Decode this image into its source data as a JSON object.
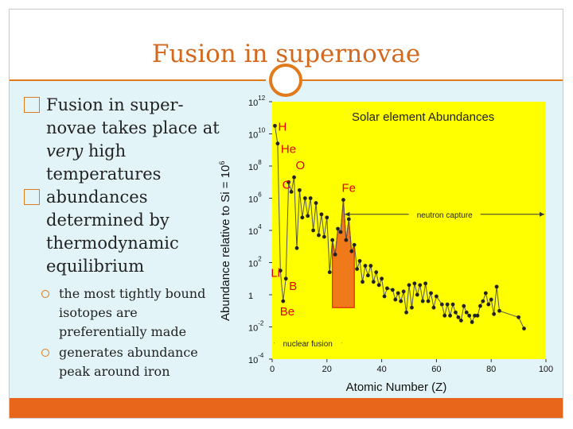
{
  "slide": {
    "title": "Fusion in supernovae",
    "bullets": [
      {
        "pre": "Fusion in super-novae takes place at ",
        "em": "very",
        "post": " high temperatures"
      },
      {
        "pre": "abundances determined by thermodynamic equilibrium",
        "em": "",
        "post": ""
      }
    ],
    "sub_bullets": [
      "the most tightly bound isotopes are preferentially made",
      "generates abundance peak around iron"
    ]
  },
  "colors": {
    "accent": "#e07a1a",
    "plot_bg": "#ffff00",
    "line": "#555555",
    "point": "#222222",
    "fill": "#f07a1a",
    "label_red": "#e10000"
  },
  "chart_data": {
    "type": "line",
    "title": "Solar element Abundances",
    "xlabel": "Atomic Number (Z)",
    "ylabel": "Abundance relative to Si = 10",
    "ylabel_sup": "6",
    "xlim": [
      0,
      100
    ],
    "ylim": [
      -4,
      12
    ],
    "xticks": [
      "0",
      "20",
      "40",
      "60",
      "80",
      "100"
    ],
    "yticks": [
      {
        "value": 12,
        "base": "10",
        "exp": "12"
      },
      {
        "value": 10,
        "base": "10",
        "exp": "10"
      },
      {
        "value": 8,
        "base": "10",
        "exp": "8"
      },
      {
        "value": 6,
        "base": "10",
        "exp": "6"
      },
      {
        "value": 4,
        "base": "10",
        "exp": "4"
      },
      {
        "value": 2,
        "base": "10",
        "exp": "2"
      },
      {
        "value": 0,
        "base": "1",
        "exp": ""
      },
      {
        "value": -2,
        "base": "10",
        "exp": "-2"
      },
      {
        "value": -4,
        "base": "10",
        "exp": "-4"
      }
    ],
    "x": [
      1,
      2,
      3,
      4,
      5,
      6,
      7,
      8,
      9,
      10,
      11,
      12,
      13,
      14,
      15,
      16,
      17,
      18,
      19,
      20,
      21,
      22,
      23,
      24,
      25,
      26,
      27,
      28,
      29,
      30,
      31,
      32,
      33,
      34,
      35,
      36,
      37,
      38,
      39,
      40,
      41,
      42,
      44,
      45,
      46,
      47,
      48,
      49,
      50,
      51,
      52,
      53,
      54,
      55,
      56,
      57,
      58,
      59,
      60,
      62,
      63,
      64,
      65,
      66,
      67,
      68,
      69,
      70,
      71,
      72,
      73,
      74,
      75,
      76,
      77,
      78,
      79,
      80,
      81,
      82,
      83,
      90,
      92
    ],
    "y": [
      10.5,
      9.4,
      1.5,
      -0.4,
      1.0,
      7.0,
      6.4,
      7.3,
      2.9,
      6.5,
      4.8,
      6.0,
      4.9,
      6.0,
      4.0,
      5.7,
      3.7,
      5.0,
      3.6,
      4.8,
      1.4,
      3.4,
      2.5,
      4.1,
      3.9,
      5.9,
      3.4,
      4.7,
      2.7,
      3.1,
      1.6,
      2.1,
      0.8,
      1.8,
      1.2,
      1.8,
      0.8,
      1.4,
      0.6,
      1.0,
      -0.1,
      0.4,
      0.3,
      -0.3,
      0.1,
      -0.4,
      0.2,
      -1.1,
      0.6,
      -0.8,
      0.7,
      0.0,
      0.6,
      -0.4,
      0.7,
      -0.4,
      0.1,
      -0.8,
      -0.1,
      -0.6,
      -1.3,
      -0.6,
      -1.3,
      -0.6,
      -1.1,
      -1.4,
      -1.6,
      -0.7,
      -1.1,
      -1.3,
      -1.7,
      -1.3,
      -1.3,
      -0.7,
      -0.4,
      0.1,
      -0.6,
      -0.3,
      -1.2,
      0.5,
      -1.0,
      -1.4,
      -2.1
    ],
    "peak_fill": {
      "x": [
        22,
        23,
        24,
        25,
        26,
        27,
        28,
        29,
        30
      ],
      "y": [
        3.4,
        2.5,
        4.1,
        3.9,
        5.9,
        3.4,
        4.7,
        2.7,
        3.1
      ]
    },
    "element_labels": [
      {
        "text": "H",
        "x": 1,
        "y": 10.5
      },
      {
        "text": "He",
        "x": 2,
        "y": 9.4
      },
      {
        "text": "C",
        "x": 6,
        "y": 7.0
      },
      {
        "text": "O",
        "x": 8,
        "y": 7.3
      },
      {
        "text": "Fe",
        "x": 26,
        "y": 5.9
      },
      {
        "text": "Li",
        "x": 3,
        "y": 1.5
      },
      {
        "text": "B",
        "x": 5,
        "y": 1.0
      },
      {
        "text": "Be",
        "x": 4,
        "y": -0.4
      }
    ],
    "annotations": [
      {
        "text": "neutron capture",
        "x_start": 26,
        "x_end": 100,
        "y": 5
      },
      {
        "text": "nuclear fusion",
        "x_start": 0,
        "x_end": 26,
        "y": -3
      }
    ]
  }
}
